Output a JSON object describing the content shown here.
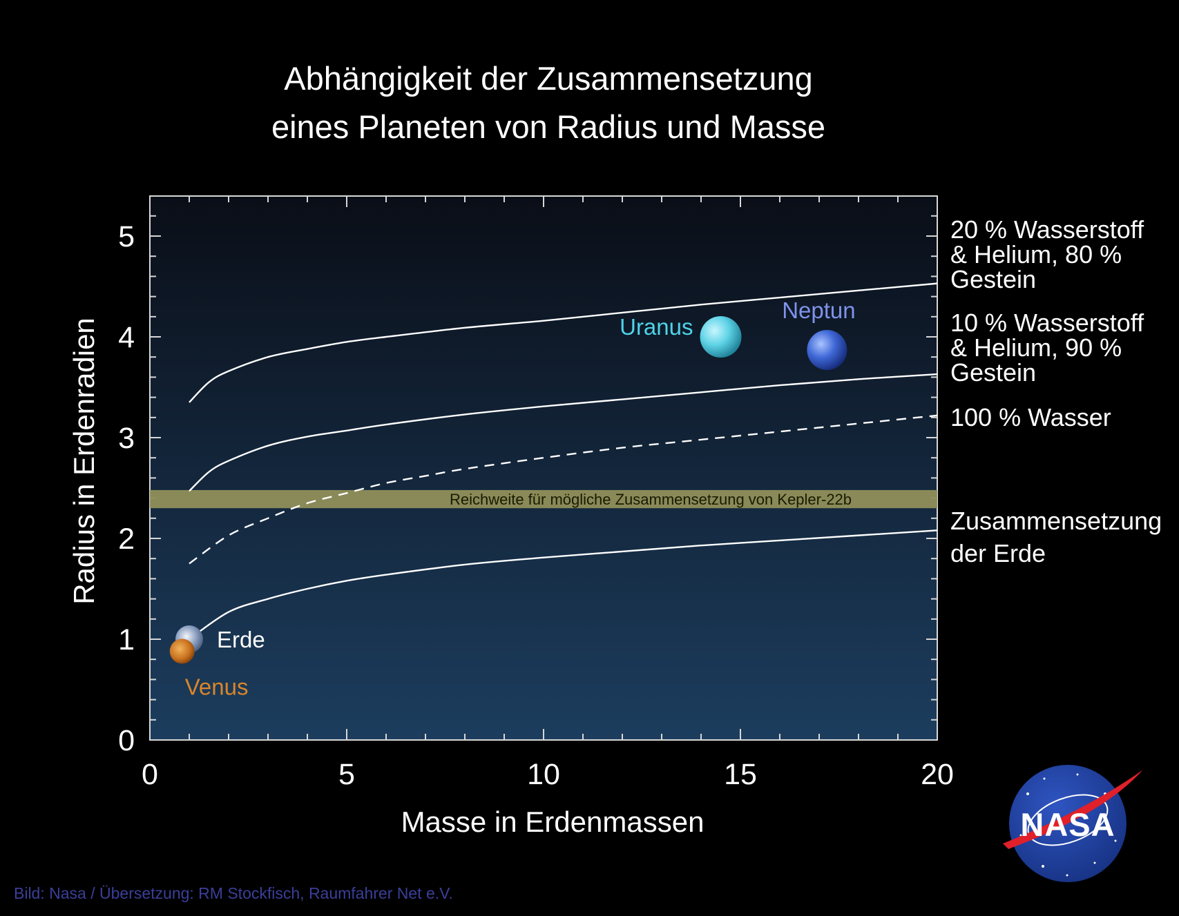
{
  "title": {
    "line1": "Abhängigkeit der Zusammensetzung",
    "line2": "eines Planeten von Radius und Masse"
  },
  "credit": "Bild: Nasa  / Übersetzung: RM Stockfisch, Raumfahrer Net e.V.",
  "logo": {
    "text": "NASA",
    "colors": {
      "disc": "#1f3f9e",
      "swoosh": "#e0202a"
    }
  },
  "colors": {
    "background": "#000000",
    "plot_top": "#0a0e17",
    "plot_bottom": "#1c3d5e",
    "band": "#8f8f5a",
    "uranus": "#4fd3e8",
    "neptune": "#7f93ea",
    "venus": "#d9862a",
    "curve": "#ffffff"
  },
  "chart_data": {
    "type": "line",
    "title": "Abhängigkeit der Zusammensetzung eines Planeten von Radius und Masse",
    "xlabel": "Masse in Erdenmassen",
    "ylabel": "Radius in Erdenradien",
    "xlim": [
      0,
      20
    ],
    "ylim": [
      0,
      5.4
    ],
    "xticks": [
      0,
      5,
      10,
      15,
      20
    ],
    "yticks": [
      0,
      1,
      2,
      3,
      4,
      5
    ],
    "grid": false,
    "series": [
      {
        "name": "20 % Wasserstoff & Helium, 80 % Gestein",
        "label_lines": [
          "20 % Wasserstoff",
          "& Helium, 80 %",
          "Gestein"
        ],
        "dashed": false,
        "x": [
          1,
          1.5,
          2,
          3,
          4,
          5,
          6,
          8,
          10,
          12,
          14,
          16,
          18,
          20
        ],
        "y": [
          3.35,
          3.55,
          3.66,
          3.8,
          3.88,
          3.95,
          4.0,
          4.09,
          4.16,
          4.24,
          4.32,
          4.39,
          4.46,
          4.53
        ]
      },
      {
        "name": "10 % Wasserstoff & Helium, 90 % Gestein",
        "label_lines": [
          "10 % Wasserstoff",
          "& Helium, 90 %",
          "Gestein"
        ],
        "dashed": false,
        "x": [
          1,
          1.5,
          2,
          3,
          4,
          5,
          6,
          8,
          10,
          12,
          14,
          16,
          18,
          20
        ],
        "y": [
          2.47,
          2.66,
          2.77,
          2.92,
          3.01,
          3.07,
          3.13,
          3.23,
          3.31,
          3.38,
          3.45,
          3.52,
          3.58,
          3.63
        ]
      },
      {
        "name": "100 % Wasser",
        "label_lines": [
          "100 % Wasser"
        ],
        "dashed": true,
        "x": [
          1,
          2,
          3,
          4,
          5,
          6,
          7,
          8,
          10,
          12,
          14,
          16,
          18,
          20
        ],
        "y": [
          1.75,
          2.03,
          2.2,
          2.35,
          2.45,
          2.55,
          2.62,
          2.69,
          2.8,
          2.9,
          2.98,
          3.06,
          3.14,
          3.22
        ]
      },
      {
        "name": "Zusammensetzung der Erde",
        "label_lines": [
          "Zusammensetzung",
          "der Erde"
        ],
        "dashed": false,
        "x": [
          1,
          2,
          3,
          4,
          5,
          6,
          8,
          10,
          12,
          14,
          16,
          18,
          20
        ],
        "y": [
          1.0,
          1.27,
          1.4,
          1.5,
          1.58,
          1.64,
          1.74,
          1.81,
          1.87,
          1.93,
          1.98,
          2.03,
          2.08
        ]
      }
    ],
    "band": {
      "label": "Reichweite für mögliche Zusammensetzung von Kepler-22b",
      "y_range": [
        2.3,
        2.48
      ]
    },
    "planets": [
      {
        "name": "Uranus",
        "x": 14.5,
        "y": 4.0
      },
      {
        "name": "Neptun",
        "x": 17.2,
        "y": 3.87
      },
      {
        "name": "Erde",
        "x": 1.0,
        "y": 1.0
      },
      {
        "name": "Venus",
        "x": 0.82,
        "y": 0.88
      }
    ]
  }
}
